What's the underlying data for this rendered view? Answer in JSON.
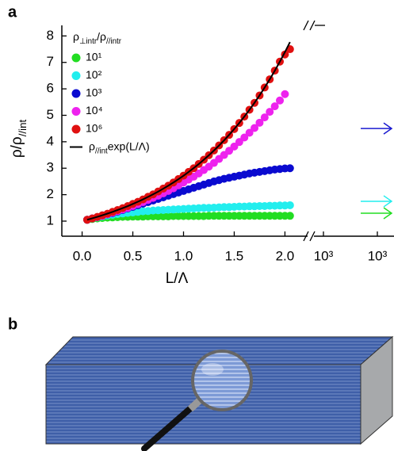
{
  "chart_data": {
    "type": "scatter",
    "panel_labels": [
      "a",
      "b"
    ],
    "x_label": "L/Λ",
    "y_label": [
      {
        "text": "ρ/ρ"
      },
      {
        "text": "//int",
        "sub": true
      }
    ],
    "legend_title": [
      {
        "text": "ρ"
      },
      {
        "text": "⊥intr",
        "sub": true
      },
      {
        "text": "/ρ"
      },
      {
        "text": "//intr",
        "sub": true
      }
    ],
    "xlim": [
      -0.2,
      2.2
    ],
    "ylim": [
      0.43,
      8.4
    ],
    "xticks": [
      {
        "value": 0,
        "label": "0.0"
      },
      0.5,
      {
        "value": 1,
        "label": "1.0"
      },
      1.5,
      {
        "value": 2,
        "label": "2.0"
      }
    ],
    "yticks": [
      1,
      2,
      3,
      4,
      5,
      6,
      7,
      8
    ],
    "break_ticks": [
      "10³",
      "10³"
    ],
    "x": [
      0.05,
      0.1,
      0.15,
      0.2,
      0.25,
      0.3,
      0.35,
      0.4,
      0.45,
      0.5,
      0.55,
      0.6,
      0.65,
      0.7,
      0.75,
      0.8,
      0.85,
      0.9,
      0.95,
      1.0,
      1.05,
      1.1,
      1.15,
      1.2,
      1.25,
      1.3,
      1.35,
      1.4,
      1.45,
      1.5,
      1.55,
      1.6,
      1.65,
      1.7,
      1.75,
      1.8,
      1.85,
      1.9,
      1.95,
      2.0,
      2.05
    ],
    "series": [
      {
        "name": "10¹",
        "color": "#22dd22",
        "values": [
          1.05,
          1.08,
          1.1,
          1.12,
          1.13,
          1.14,
          1.15,
          1.16,
          1.16,
          1.17,
          1.17,
          1.17,
          1.18,
          1.18,
          1.18,
          1.18,
          1.18,
          1.19,
          1.19,
          1.19,
          1.19,
          1.19,
          1.19,
          1.19,
          1.2,
          1.2,
          1.2,
          1.2,
          1.2,
          1.2,
          1.2,
          1.2,
          1.2,
          1.2,
          1.2,
          1.2,
          1.2,
          1.2,
          1.2,
          1.2,
          1.2
        ]
      },
      {
        "name": "10²",
        "color": "#22eeee",
        "values": [
          1.05,
          1.1,
          1.14,
          1.18,
          1.21,
          1.24,
          1.27,
          1.29,
          1.31,
          1.33,
          1.35,
          1.37,
          1.38,
          1.4,
          1.41,
          1.42,
          1.43,
          1.44,
          1.45,
          1.46,
          1.47,
          1.48,
          1.49,
          1.5,
          1.5,
          1.51,
          1.52,
          1.53,
          1.53,
          1.54,
          1.55,
          1.55,
          1.56,
          1.56,
          1.57,
          1.57,
          1.58,
          1.58,
          1.59,
          1.59,
          1.6
        ]
      },
      {
        "name": "10³",
        "color": "#0a0ad0",
        "values": [
          1.05,
          1.1,
          1.15,
          1.2,
          1.25,
          1.3,
          1.36,
          1.42,
          1.48,
          1.54,
          1.6,
          1.66,
          1.72,
          1.78,
          1.84,
          1.9,
          1.96,
          2.02,
          2.08,
          2.14,
          2.2,
          2.26,
          2.32,
          2.38,
          2.44,
          2.5,
          2.55,
          2.6,
          2.64,
          2.68,
          2.72,
          2.76,
          2.8,
          2.83,
          2.86,
          2.89,
          2.92,
          2.95,
          2.97,
          2.99,
          3.0
        ]
      },
      {
        "name": "10⁴",
        "color": "#ee22ee",
        "values": [
          1.05,
          1.1,
          1.15,
          1.2,
          1.26,
          1.32,
          1.38,
          1.44,
          1.5,
          1.57,
          1.64,
          1.72,
          1.8,
          1.88,
          1.96,
          2.05,
          2.14,
          2.24,
          2.35,
          2.46,
          2.57,
          2.68,
          2.8,
          2.93,
          3.06,
          3.2,
          3.35,
          3.5,
          3.66,
          3.82,
          3.99,
          4.16,
          4.34,
          4.52,
          4.72,
          4.92,
          5.13,
          5.34,
          5.56,
          5.8,
          null
        ]
      },
      {
        "name": "10⁶",
        "color": "#e01010",
        "values": [
          1.05,
          1.1,
          1.16,
          1.22,
          1.28,
          1.35,
          1.42,
          1.49,
          1.57,
          1.65,
          1.73,
          1.82,
          1.92,
          2.01,
          2.12,
          2.23,
          2.34,
          2.46,
          2.59,
          2.72,
          2.86,
          3.0,
          3.16,
          3.32,
          3.49,
          3.67,
          3.86,
          4.06,
          4.26,
          4.48,
          4.71,
          4.95,
          5.21,
          5.47,
          5.75,
          6.05,
          6.36,
          6.69,
          7.03,
          7.3,
          7.5
        ]
      }
    ],
    "fit": {
      "color": "#000000",
      "label": [
        {
          "text": "ρ"
        },
        {
          "text": "//int",
          "sub": true
        },
        {
          "text": "exp(L/Λ)"
        }
      ],
      "values": [
        1.051,
        1.105,
        1.162,
        1.221,
        1.284,
        1.35,
        1.419,
        1.492,
        1.568,
        1.649,
        1.733,
        1.822,
        1.916,
        2.014,
        2.117,
        2.226,
        2.34,
        2.46,
        2.586,
        2.718,
        2.858,
        3.004,
        3.158,
        3.32,
        3.49,
        3.669,
        3.857,
        4.055,
        4.263,
        4.482,
        4.711,
        4.953,
        5.207,
        5.474,
        5.755,
        6.05,
        6.36,
        6.686,
        7.029,
        7.389,
        7.768
      ]
    },
    "arrows": [
      {
        "value": 4.5,
        "color": "#1a1ad0"
      },
      {
        "value": 1.75,
        "color": "#22eeee"
      },
      {
        "value": 1.3,
        "color": "#22dd22"
      }
    ]
  }
}
